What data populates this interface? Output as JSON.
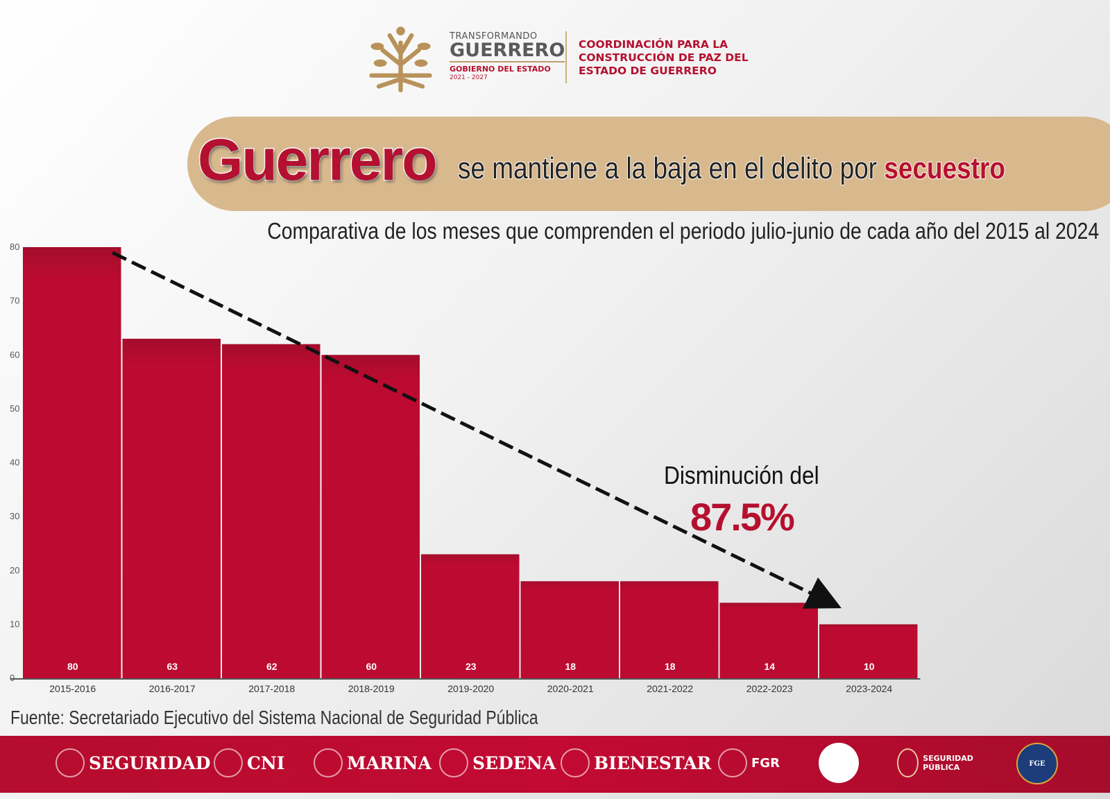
{
  "header": {
    "gov_logo": {
      "line1": "TRANSFORMANDO",
      "line2": "GUERRERO",
      "line3": "GOBIERNO DEL ESTADO",
      "line4": "2021 - 2027"
    },
    "coordination": [
      "COORDINACIÓN PARA LA",
      "CONSTRUCCIÓN DE PAZ DEL",
      "ESTADO DE GUERRERO"
    ]
  },
  "title": {
    "highlight": "Guerrero",
    "rest": "se mantiene a la baja en el delito por",
    "keyword": "secuestro"
  },
  "subtitle": "Comparativa de los meses que comprenden el periodo julio-junio de cada año del 2015 al 2024",
  "annotation": {
    "text": "Disminución del",
    "value": "87.5%"
  },
  "source": "Fuente: Secretariado Ejecutivo del Sistema Nacional de Seguridad Pública",
  "footer_logos": [
    "SEGURIDAD",
    "CNI",
    "MARINA",
    "SEDENA",
    "BIENESTAR",
    "FGR",
    "SEGURIDAD PÚBLICA",
    "FGE"
  ],
  "colors": {
    "bar": "#b80c30",
    "accent": "#b5102f",
    "banner": "#d8b98e"
  },
  "chart_data": {
    "type": "bar",
    "categories": [
      "2015-2016",
      "2016-2017",
      "2017-2018",
      "2018-2019",
      "2019-2020",
      "2020-2021",
      "2021-2022",
      "2022-2023",
      "2023-2024"
    ],
    "values": [
      80,
      63,
      62,
      60,
      23,
      18,
      18,
      14,
      10
    ],
    "ylim": [
      0,
      80
    ],
    "yticks": [
      0,
      10,
      20,
      30,
      40,
      50,
      60,
      70,
      80
    ],
    "grid": false,
    "trend_line": "dashed arrow from first to last bar"
  }
}
